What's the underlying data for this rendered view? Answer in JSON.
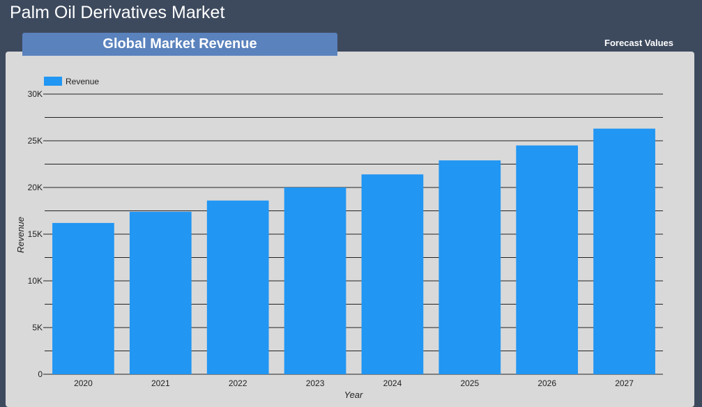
{
  "header": {
    "title": "Palm Oil Derivatives Market",
    "tab_label": "Global Market Revenue",
    "forecast_label": "Forecast Values"
  },
  "colors": {
    "background": "#3d4a5e",
    "panel": "#d9d9d9",
    "tab": "#5a82bd",
    "bar": "#2196f3"
  },
  "chart_data": {
    "type": "bar",
    "categories": [
      "2020",
      "2021",
      "2022",
      "2023",
      "2024",
      "2025",
      "2026",
      "2027"
    ],
    "series": [
      {
        "name": "Revenue",
        "values": [
          16200,
          17400,
          18600,
          20000,
          21400,
          22900,
          24500,
          26300
        ]
      }
    ],
    "xlabel": "Year",
    "ylabel": "Revenue",
    "ylim": [
      0,
      30000
    ],
    "yticks": [
      0,
      5000,
      10000,
      15000,
      20000,
      25000,
      30000
    ],
    "ytick_labels": [
      "0",
      "5K",
      "10K",
      "15K",
      "20K",
      "25K",
      "30K"
    ],
    "grid": true,
    "legend": "top-left"
  }
}
